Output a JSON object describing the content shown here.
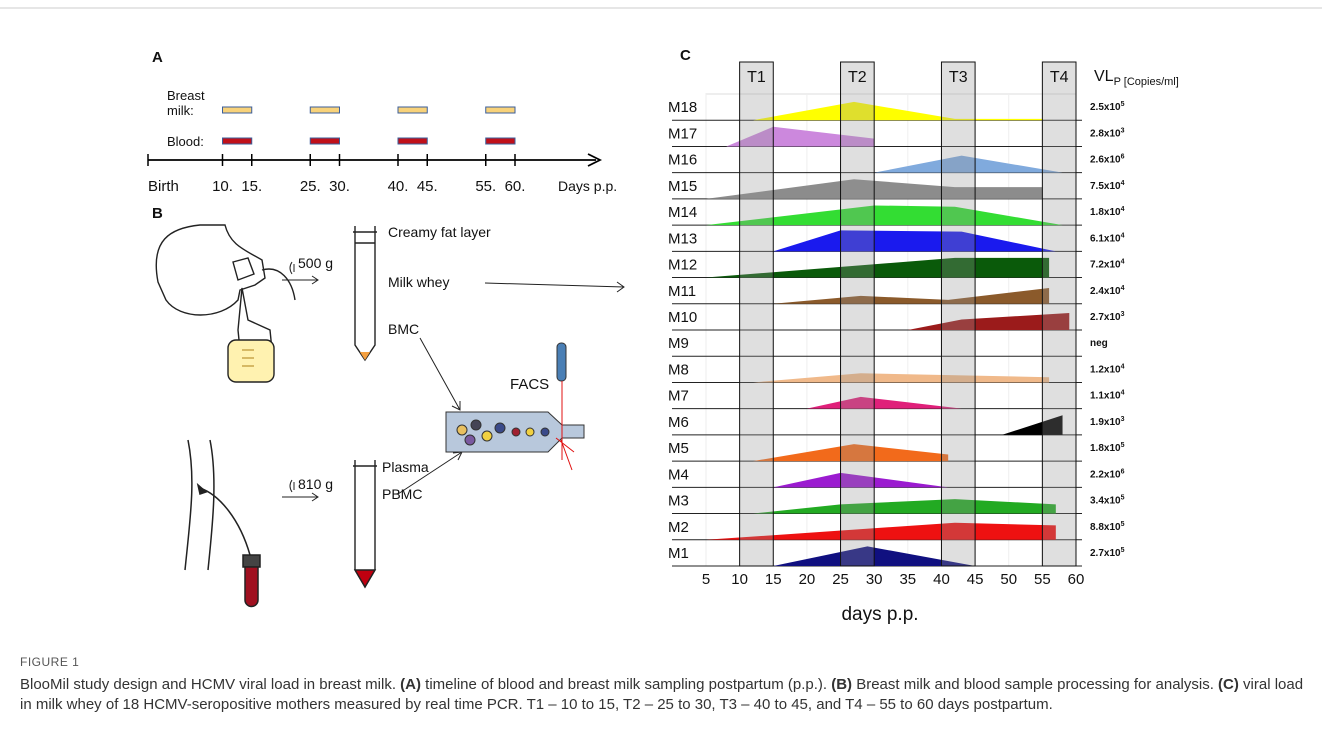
{
  "panel_a": {
    "label": "A",
    "rows": [
      {
        "label_lines": [
          "Breast",
          "milk:"
        ],
        "color": "#f8d27a"
      },
      {
        "label_lines": [
          "Blood:"
        ],
        "color": "#c0101a"
      }
    ],
    "windows": [
      [
        10,
        15
      ],
      [
        25,
        30
      ],
      [
        40,
        45
      ],
      [
        55,
        60
      ]
    ],
    "ticks": [
      {
        "value": 10,
        "label": "10."
      },
      {
        "value": 15,
        "label": "15."
      },
      {
        "value": 25,
        "label": "25."
      },
      {
        "value": 30,
        "label": "30."
      },
      {
        "value": 40,
        "label": "40."
      },
      {
        "value": 45,
        "label": "45."
      },
      {
        "value": 55,
        "label": "55."
      },
      {
        "value": 60,
        "label": "60."
      }
    ],
    "start_label": "Birth",
    "end_label": "Days p.p."
  },
  "panel_b": {
    "label": "B",
    "creamy": "Creamy fat layer",
    "whey": "Milk whey",
    "bmc": "BMC",
    "spin_milk": "500 g",
    "spin_blood": "810 g",
    "plasma": "Plasma",
    "pbmc": "PBMC",
    "facs": "FACS"
  },
  "panel_c": {
    "label": "C",
    "timepoints": [
      {
        "name": "T1",
        "window": [
          10,
          15
        ]
      },
      {
        "name": "T2",
        "window": [
          25,
          30
        ]
      },
      {
        "name": "T3",
        "window": [
          40,
          45
        ]
      },
      {
        "name": "T4",
        "window": [
          55,
          60
        ]
      }
    ],
    "vl_header": "VL",
    "vl_sub": "P [Copies/ml]",
    "xlim": [
      5,
      60
    ],
    "xticks": [
      5,
      10,
      15,
      20,
      25,
      30,
      35,
      40,
      45,
      50,
      55,
      60
    ],
    "xlabel": "days p.p.",
    "rows": [
      {
        "name": "M18",
        "color": "#ffff00",
        "vl": {
          "base": "2.5x10",
          "exp": "5"
        },
        "profile": [
          [
            12,
            0
          ],
          [
            27,
            0.7
          ],
          [
            42,
            0.05
          ],
          [
            55,
            0.05
          ],
          [
            55,
            0
          ]
        ]
      },
      {
        "name": "M17",
        "color": "#cc88dd",
        "vl": {
          "base": "2.8x10",
          "exp": "3"
        },
        "profile": [
          [
            8,
            0
          ],
          [
            15,
            0.75
          ],
          [
            30,
            0.3
          ],
          [
            30,
            0
          ]
        ]
      },
      {
        "name": "M16",
        "color": "#80aadd",
        "vl": {
          "base": "2.6x10",
          "exp": "6"
        },
        "profile": [
          [
            30,
            0
          ],
          [
            43,
            0.65
          ],
          [
            58,
            0
          ]
        ]
      },
      {
        "name": "M15",
        "color": "#8c8c8c",
        "vl": {
          "base": "7.5x10",
          "exp": "4"
        },
        "profile": [
          [
            5,
            0
          ],
          [
            27,
            0.75
          ],
          [
            42,
            0.45
          ],
          [
            55,
            0.45
          ],
          [
            55,
            0
          ]
        ]
      },
      {
        "name": "M14",
        "color": "#33dd33",
        "vl": {
          "base": "1.8x10",
          "exp": "4"
        },
        "profile": [
          [
            5,
            0
          ],
          [
            30,
            0.75
          ],
          [
            42,
            0.7
          ],
          [
            58,
            0
          ]
        ]
      },
      {
        "name": "M13",
        "color": "#1a1aee",
        "vl": {
          "base": "6.1x10",
          "exp": "4"
        },
        "profile": [
          [
            15,
            0
          ],
          [
            25,
            0.8
          ],
          [
            43,
            0.75
          ],
          [
            57,
            0
          ]
        ]
      },
      {
        "name": "M12",
        "color": "#0a5a0a",
        "vl": {
          "base": "7.2x10",
          "exp": "4"
        },
        "profile": [
          [
            5,
            0
          ],
          [
            42,
            0.75
          ],
          [
            56,
            0.75
          ],
          [
            56,
            0
          ]
        ]
      },
      {
        "name": "M11",
        "color": "#8b5a2b",
        "vl": {
          "base": "2.4x10",
          "exp": "4"
        },
        "profile": [
          [
            15,
            0
          ],
          [
            28,
            0.3
          ],
          [
            41,
            0.15
          ],
          [
            56,
            0.6
          ],
          [
            56,
            0
          ]
        ]
      },
      {
        "name": "M10",
        "color": "#9b1b1b",
        "vl": {
          "base": "2.7x10",
          "exp": "3"
        },
        "profile": [
          [
            35,
            0
          ],
          [
            43,
            0.4
          ],
          [
            59,
            0.65
          ],
          [
            59,
            0
          ]
        ]
      },
      {
        "name": "M9",
        "color": "#ffffff",
        "vl": {
          "base": "neg"
        },
        "profile": []
      },
      {
        "name": "M8",
        "color": "#f0b98a",
        "vl": {
          "base": "1.2x10",
          "exp": "4"
        },
        "profile": [
          [
            12,
            0
          ],
          [
            28,
            0.35
          ],
          [
            56,
            0.2
          ],
          [
            56,
            0
          ]
        ]
      },
      {
        "name": "M7",
        "color": "#e0207a",
        "vl": {
          "base": "1.1x10",
          "exp": "4"
        },
        "profile": [
          [
            20,
            0
          ],
          [
            28,
            0.45
          ],
          [
            43,
            0
          ]
        ]
      },
      {
        "name": "M6",
        "color": "#000000",
        "vl": {
          "base": "1.9x10",
          "exp": "3"
        },
        "profile": [
          [
            49,
            0
          ],
          [
            58,
            0.75
          ],
          [
            58,
            0
          ]
        ]
      },
      {
        "name": "M5",
        "color": "#f26a1b",
        "vl": {
          "base": "1.8x10",
          "exp": "5"
        },
        "profile": [
          [
            12,
            0
          ],
          [
            27,
            0.65
          ],
          [
            41,
            0.25
          ],
          [
            41,
            0
          ]
        ]
      },
      {
        "name": "M4",
        "color": "#9b1bd0",
        "vl": {
          "base": "2.2x10",
          "exp": "6"
        },
        "profile": [
          [
            15,
            0
          ],
          [
            25,
            0.55
          ],
          [
            41,
            0
          ]
        ]
      },
      {
        "name": "M3",
        "color": "#22aa22",
        "vl": {
          "base": "3.4x10",
          "exp": "5"
        },
        "profile": [
          [
            12,
            0
          ],
          [
            25,
            0.35
          ],
          [
            42,
            0.55
          ],
          [
            57,
            0.35
          ],
          [
            57,
            0
          ]
        ]
      },
      {
        "name": "M2",
        "color": "#ee1111",
        "vl": {
          "base": "8.8x10",
          "exp": "5"
        },
        "profile": [
          [
            5,
            0
          ],
          [
            42,
            0.65
          ],
          [
            57,
            0.55
          ],
          [
            57,
            0
          ]
        ]
      },
      {
        "name": "M1",
        "color": "#101080",
        "vl": {
          "base": "2.7x10",
          "exp": "5"
        },
        "profile": [
          [
            15,
            0
          ],
          [
            29,
            0.75
          ],
          [
            45,
            0
          ]
        ]
      }
    ]
  },
  "caption": {
    "figure_label": "FIGURE 1",
    "title": "BlooMil study design and HCMV viral load in breast milk.",
    "parts": [
      {
        "label": "(A)",
        "text": "timeline of blood and breast milk sampling postpartum (p.p.)."
      },
      {
        "label": "(B)",
        "text": "Breast milk and blood sample processing for analysis."
      },
      {
        "label": "(C)",
        "text": "viral load in milk whey of 18 HCMV-seropositive mothers measured by real time PCR. T1 – 10 to 15, T2 – 25 to 30, T3 – 40 to 45, and T4 – 55 to 60 days postpartum."
      }
    ]
  }
}
